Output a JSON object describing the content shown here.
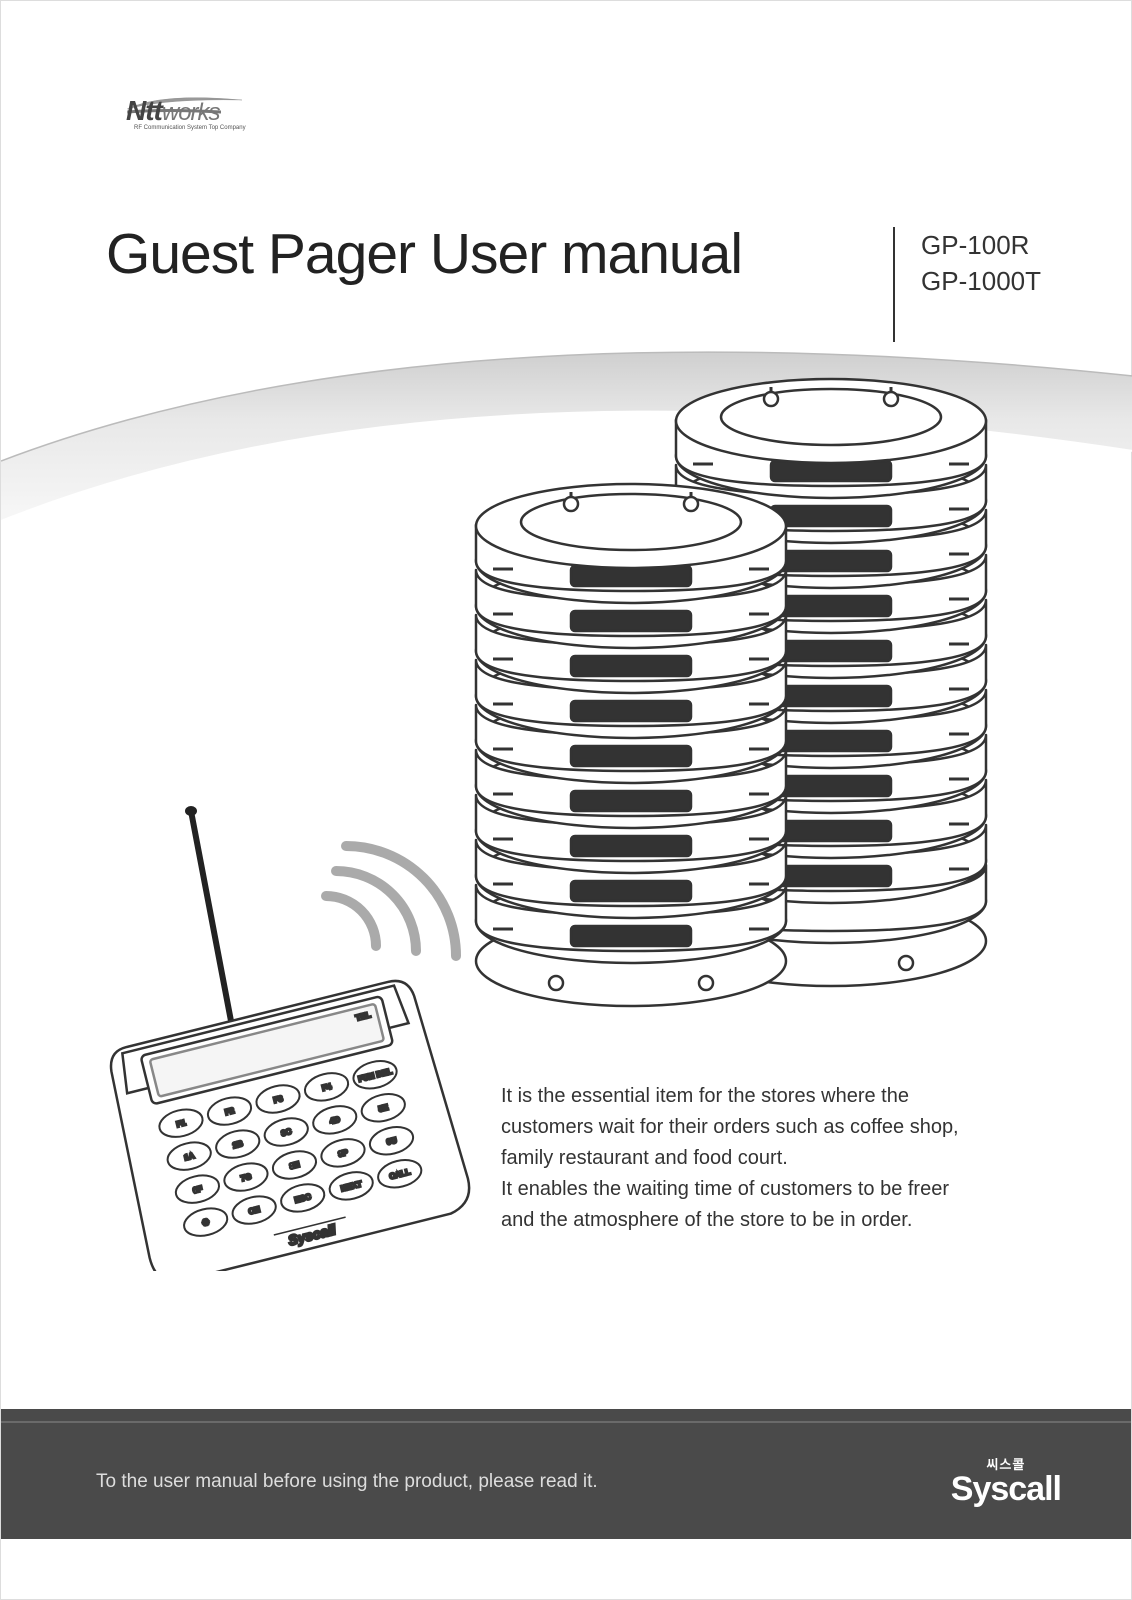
{
  "logo": {
    "brand_bold": "Ntt",
    "brand_light": "works",
    "tagline": "RF Communication System Top Company",
    "swoosh_color": "#808080"
  },
  "title": {
    "main": "Guest Pager User manual",
    "model1": "GP-100R",
    "model2": "GP-1000T",
    "divider_color": "#333333"
  },
  "band": {
    "color_top": "#d9d9d9",
    "color_bottom": "#f2f2f2"
  },
  "description": {
    "line1": "It is the essential item for the stores where the",
    "line2": "customers wait for their orders such as coffee shop,",
    "line3": "family restaurant and food court.",
    "line4": "It enables the waiting time of customers to be freer",
    "line5": "and the atmosphere of the store to be in order."
  },
  "keypad": {
    "brand": "Syscall",
    "rows": [
      [
        "F1",
        "F2",
        "F3",
        "F4",
        "FUN DEL"
      ],
      [
        "1A",
        "2B",
        "3C",
        "4D",
        "5E"
      ],
      [
        "6F",
        "7G",
        "8H",
        "9P",
        "0U"
      ],
      [
        "✱",
        "CH",
        "ESC",
        "NEXT",
        "CALL"
      ]
    ],
    "lcd_tel": "TEL",
    "antenna_color": "#222222",
    "body_color": "#ffffff",
    "stroke": "#333333"
  },
  "pagers": {
    "stroke": "#333333",
    "fill": "#ffffff",
    "wifi_color": "#999999"
  },
  "footer": {
    "text": "To the user manual before using the product, please read it.",
    "bg": "#4a4a4a",
    "logo_kr": "씨스콜",
    "logo_en": "Syscall"
  }
}
